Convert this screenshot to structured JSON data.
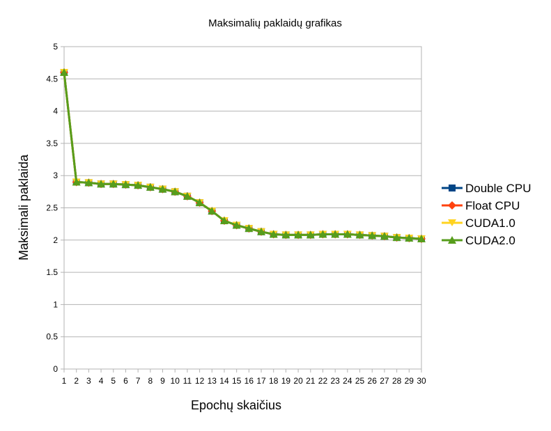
{
  "chart_data": {
    "type": "line",
    "title": "Maksimalių paklaidų grafikas",
    "xlabel": "Epochų skaičius",
    "ylabel": "Maksimali paklaida",
    "x": [
      1,
      2,
      3,
      4,
      5,
      6,
      7,
      8,
      9,
      10,
      11,
      12,
      13,
      14,
      15,
      16,
      17,
      18,
      19,
      20,
      21,
      22,
      23,
      24,
      25,
      26,
      27,
      28,
      29,
      30
    ],
    "ylim": [
      0,
      5
    ],
    "yticks": [
      "0",
      "0.5",
      "1",
      "1.5",
      "2",
      "2.5",
      "3",
      "3.5",
      "4",
      "4.5",
      "5"
    ],
    "xticks": [
      "1",
      "2",
      "3",
      "4",
      "5",
      "6",
      "7",
      "8",
      "9",
      "10",
      "11",
      "12",
      "13",
      "14",
      "15",
      "16",
      "17",
      "18",
      "19",
      "20",
      "21",
      "22",
      "23",
      "24",
      "25",
      "26",
      "27",
      "28",
      "29",
      "30"
    ],
    "grid": true,
    "legend_position": "right",
    "series": [
      {
        "name": "Double CPU",
        "color": "#004586",
        "marker": "square",
        "values": [
          4.6,
          2.9,
          2.89,
          2.87,
          2.87,
          2.86,
          2.85,
          2.82,
          2.79,
          2.75,
          2.68,
          2.58,
          2.45,
          2.3,
          2.23,
          2.18,
          2.13,
          2.09,
          2.08,
          2.08,
          2.08,
          2.09,
          2.09,
          2.09,
          2.08,
          2.07,
          2.06,
          2.04,
          2.03,
          2.02
        ]
      },
      {
        "name": "Float CPU",
        "color": "#ff420e",
        "marker": "diamond",
        "values": [
          4.6,
          2.9,
          2.89,
          2.87,
          2.87,
          2.86,
          2.85,
          2.82,
          2.79,
          2.75,
          2.68,
          2.58,
          2.45,
          2.3,
          2.23,
          2.18,
          2.13,
          2.09,
          2.08,
          2.08,
          2.08,
          2.09,
          2.09,
          2.09,
          2.08,
          2.07,
          2.06,
          2.04,
          2.03,
          2.02
        ]
      },
      {
        "name": "CUDA1.0",
        "color": "#ffd320",
        "marker": "triangle-down",
        "values": [
          4.6,
          2.9,
          2.89,
          2.87,
          2.87,
          2.86,
          2.85,
          2.82,
          2.79,
          2.75,
          2.68,
          2.58,
          2.45,
          2.3,
          2.23,
          2.18,
          2.13,
          2.09,
          2.08,
          2.08,
          2.08,
          2.09,
          2.09,
          2.09,
          2.08,
          2.07,
          2.06,
          2.04,
          2.03,
          2.02
        ]
      },
      {
        "name": "CUDA2.0",
        "color": "#579d1c",
        "marker": "triangle-up",
        "values": [
          4.6,
          2.9,
          2.89,
          2.87,
          2.87,
          2.86,
          2.85,
          2.82,
          2.79,
          2.75,
          2.68,
          2.58,
          2.45,
          2.3,
          2.23,
          2.18,
          2.13,
          2.09,
          2.08,
          2.08,
          2.08,
          2.09,
          2.09,
          2.09,
          2.08,
          2.07,
          2.06,
          2.04,
          2.03,
          2.02
        ]
      }
    ]
  }
}
